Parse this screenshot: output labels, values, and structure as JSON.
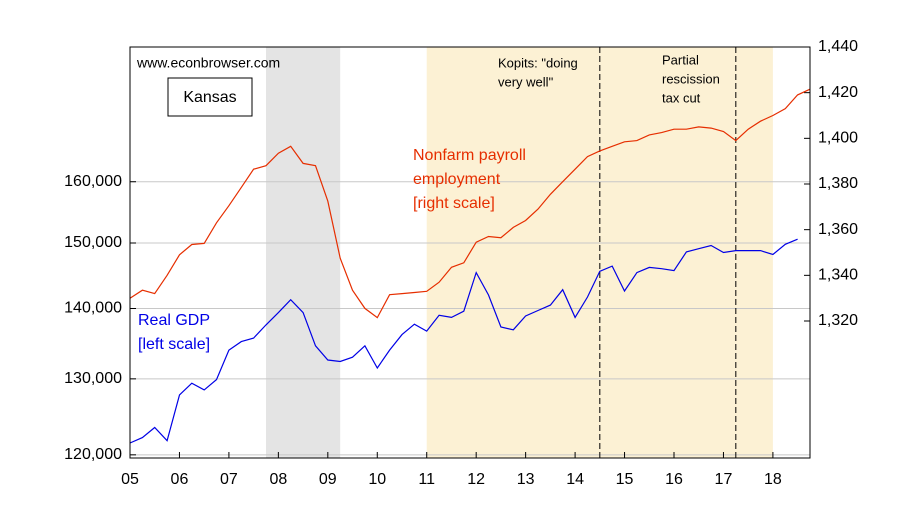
{
  "chart_data": {
    "type": "line",
    "source": "www.econbrowser.com",
    "title": "Kansas",
    "xlim": [
      2005,
      2018.75
    ],
    "xticks": [
      {
        "value": 2005,
        "label": "05"
      },
      {
        "value": 2006,
        "label": "06"
      },
      {
        "value": 2007,
        "label": "07"
      },
      {
        "value": 2008,
        "label": "08"
      },
      {
        "value": 2009,
        "label": "09"
      },
      {
        "value": 2010,
        "label": "10"
      },
      {
        "value": 2011,
        "label": "11"
      },
      {
        "value": 2012,
        "label": "12"
      },
      {
        "value": 2013,
        "label": "13"
      },
      {
        "value": 2014,
        "label": "14"
      },
      {
        "value": 2015,
        "label": "15"
      },
      {
        "value": 2016,
        "label": "16"
      },
      {
        "value": 2017,
        "label": "17"
      },
      {
        "value": 2018,
        "label": "18"
      }
    ],
    "ylim": [
      119600,
      184400
    ],
    "ylog": true,
    "yticks": [
      {
        "value": 120000,
        "label": "120,000"
      },
      {
        "value": 130000,
        "label": "130,000"
      },
      {
        "value": 140000,
        "label": "140,000"
      },
      {
        "value": 150000,
        "label": "150,000"
      },
      {
        "value": 160000,
        "label": "160,000"
      }
    ],
    "y2lim": [
      1260,
      1440
    ],
    "y2ticks": [
      {
        "value": 1320,
        "label": "1,320"
      },
      {
        "value": 1340,
        "label": "1,340"
      },
      {
        "value": 1360,
        "label": "1,360"
      },
      {
        "value": 1380,
        "label": "1,380"
      },
      {
        "value": 1400,
        "label": "1,400"
      },
      {
        "value": 1420,
        "label": "1,420"
      },
      {
        "value": 1440,
        "label": "1,440"
      }
    ],
    "grid": true,
    "shaded_regions": [
      {
        "x": [
          2007.75,
          2009.25
        ],
        "color": "#e4e4e4"
      },
      {
        "x": [
          2011,
          2018
        ],
        "color": "#fcf1d4"
      }
    ],
    "vlines": [
      2014.5,
      2017.25
    ],
    "annotations": [
      [
        "Kopits: \"doing",
        "very well\""
      ],
      [
        "Partial",
        "rescission",
        "tax cut"
      ]
    ],
    "series": [
      {
        "name": [
          "Real GDP",
          "[left scale]"
        ],
        "color": "#0000e6",
        "axis": "y",
        "x": [
          2005,
          2005.25,
          2005.5,
          2005.75,
          2006,
          2006.25,
          2006.5,
          2006.75,
          2007,
          2007.25,
          2007.5,
          2007.75,
          2008,
          2008.25,
          2008.5,
          2008.75,
          2009,
          2009.25,
          2009.5,
          2009.75,
          2010,
          2010.25,
          2010.5,
          2010.75,
          2011,
          2011.25,
          2011.5,
          2011.75,
          2012,
          2012.25,
          2012.5,
          2012.75,
          2013,
          2013.25,
          2013.5,
          2013.75,
          2014,
          2014.25,
          2014.5,
          2014.75,
          2015,
          2015.25,
          2015.5,
          2015.75,
          2016,
          2016.25,
          2016.5,
          2016.75,
          2017,
          2017.25,
          2017.5,
          2017.75,
          2018,
          2018.25,
          2018.5
        ],
        "values": [
          121500,
          122200,
          123500,
          121800,
          127800,
          129400,
          128500,
          129900,
          134000,
          135200,
          135700,
          137600,
          139400,
          141300,
          139400,
          134600,
          132600,
          132400,
          133000,
          134600,
          131500,
          134000,
          136200,
          137700,
          136700,
          139000,
          138700,
          139600,
          145400,
          142000,
          137300,
          136900,
          138900,
          139700,
          140500,
          142800,
          138700,
          141700,
          145600,
          146400,
          142600,
          145400,
          146200,
          146000,
          145700,
          148600,
          149100,
          149600,
          148500,
          148800,
          148800,
          148800,
          148200,
          149800,
          150600
        ]
      },
      {
        "name": [
          "Nonfarm payroll",
          "employment",
          "[right scale]"
        ],
        "color": "#e62e00",
        "axis": "y2",
        "x": [
          2005,
          2005.25,
          2005.5,
          2005.75,
          2006,
          2006.25,
          2006.5,
          2006.75,
          2007,
          2007.25,
          2007.5,
          2007.75,
          2008,
          2008.25,
          2008.5,
          2008.75,
          2009,
          2009.25,
          2009.5,
          2009.75,
          2010,
          2010.25,
          2010.5,
          2010.75,
          2011,
          2011.25,
          2011.5,
          2011.75,
          2012,
          2012.25,
          2012.5,
          2012.75,
          2013,
          2013.25,
          2013.5,
          2013.75,
          2014,
          2014.25,
          2014.5,
          2014.75,
          2015,
          2015.25,
          2015.5,
          2015.75,
          2016,
          2016.25,
          2016.5,
          2016.75,
          2017,
          2017.25,
          2017.5,
          2017.75,
          2018,
          2018.25,
          2018.5,
          2018.75
        ],
        "values": [
          1330,
          1333.5,
          1332,
          1340,
          1349,
          1353.5,
          1354,
          1363,
          1370.5,
          1378.5,
          1386.5,
          1388,
          1393.5,
          1396.5,
          1389,
          1388,
          1372.5,
          1347.5,
          1333.5,
          1325.5,
          1321.5,
          1331.5,
          1332,
          1332.5,
          1333,
          1337,
          1343.5,
          1345.5,
          1354.5,
          1357,
          1356.5,
          1361,
          1364,
          1369,
          1375.5,
          1381,
          1386.5,
          1392,
          1394.5,
          1396.5,
          1398.5,
          1399,
          1401.5,
          1402.5,
          1404,
          1404,
          1405,
          1404.5,
          1403,
          1399,
          1404,
          1407.5,
          1410,
          1413,
          1419,
          1421.5
        ]
      }
    ]
  }
}
